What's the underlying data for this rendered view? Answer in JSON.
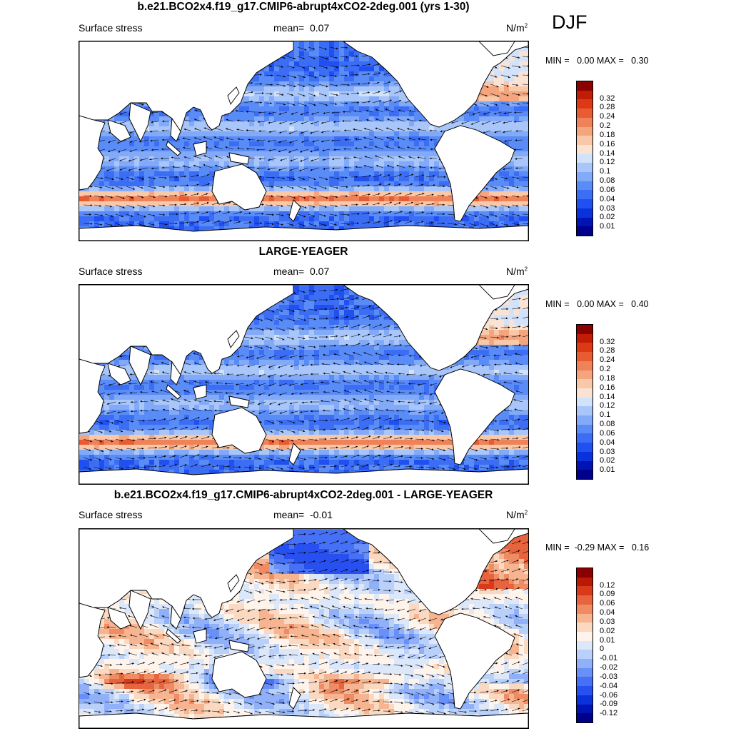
{
  "season": "DJF",
  "colors": {
    "abs_scale": [
      "#00008b",
      "#0014b4",
      "#0a32dc",
      "#2050f0",
      "#3c6ef5",
      "#5a8cf8",
      "#82aaf8",
      "#a8c6fa",
      "#d2e2fa",
      "#fbe3d3",
      "#f8c8a8",
      "#f4a57e",
      "#ef8258",
      "#e85c34",
      "#dc3a14",
      "#c01c06",
      "#8b0000"
    ],
    "diff_scale": [
      "#00008b",
      "#0014b4",
      "#0a32dc",
      "#2850f0",
      "#4670f5",
      "#6890f8",
      "#90b0fa",
      "#b8d0fa",
      "#dce8fa",
      "#fef4ec",
      "#fbd8c0",
      "#f6b490",
      "#f08c64",
      "#e8643e",
      "#d83a1a",
      "#b81a06",
      "#8b0000"
    ]
  },
  "panels": [
    {
      "title": "b.e21.BCO2x4.f19_g17.CMIP6-abrupt4xCO2-2deg.001 (yrs 1-30)",
      "variable": "Surface stress",
      "mean_label": "mean=",
      "mean_value": "0.07",
      "units": "N/m",
      "units_exp": "2",
      "minmax": "MIN =   0.00 MAX =   0.30",
      "scale": "abs",
      "levels": [
        "0.32",
        "0.28",
        "0.24",
        "0.2",
        "0.18",
        "0.16",
        "0.14",
        "0.12",
        "0.1",
        "0.08",
        "0.06",
        "0.04",
        "0.03",
        "0.02",
        "0.01"
      ]
    },
    {
      "title": "LARGE-YEAGER",
      "variable": "Surface stress",
      "mean_label": "mean=",
      "mean_value": "0.07",
      "units": "N/m",
      "units_exp": "2",
      "minmax": "MIN =   0.00 MAX =   0.40",
      "scale": "abs",
      "levels": [
        "0.32",
        "0.28",
        "0.24",
        "0.2",
        "0.18",
        "0.16",
        "0.14",
        "0.12",
        "0.1",
        "0.08",
        "0.06",
        "0.04",
        "0.03",
        "0.02",
        "0.01"
      ]
    },
    {
      "title": "b.e21.BCO2x4.f19_g17.CMIP6-abrupt4xCO2-2deg.001 - LARGE-YEAGER",
      "variable": "Surface stress",
      "mean_label": "mean=",
      "mean_value": "-0.01",
      "units": "N/m",
      "units_exp": "2",
      "minmax": "MIN =  -0.29 MAX =   0.16",
      "scale": "diff",
      "levels": [
        "0.12",
        "0.09",
        "0.06",
        "0.04",
        "0.03",
        "0.02",
        "0.01",
        "0",
        "-0.01",
        "-0.02",
        "-0.03",
        "-0.04",
        "-0.06",
        "-0.09",
        "-0.12"
      ]
    }
  ]
}
